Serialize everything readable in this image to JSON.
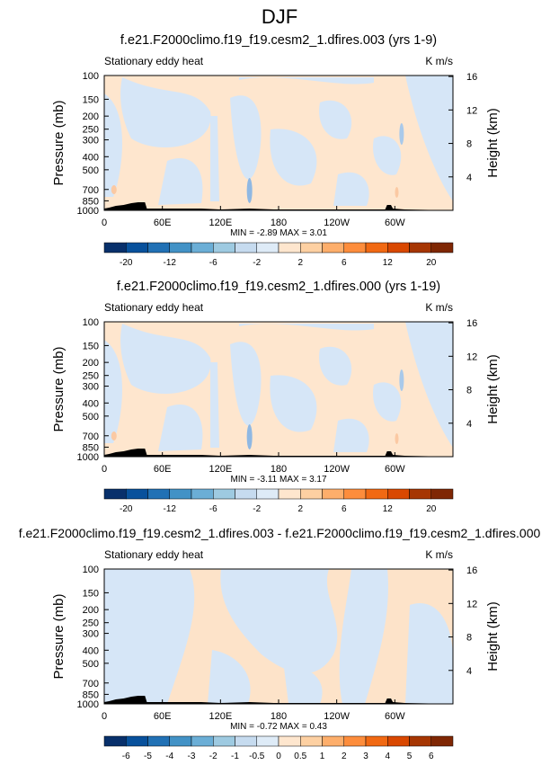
{
  "figure": {
    "title": "DJF"
  },
  "chart_data": [
    {
      "type": "heatmap",
      "title": "f.e21.F2000climo.f19_f19.cesm2_1.dfires.003 (yrs 1-9)",
      "subtitle_left": "Stationary eddy heat",
      "subtitle_right": "K m/s",
      "ylabel": "Pressure (mb)",
      "ylabel_right": "Height (km)",
      "x_ticks": [
        "0",
        "60E",
        "120E",
        "180",
        "120W",
        "60W"
      ],
      "x_tick_lons": [
        0,
        60,
        120,
        180,
        240,
        300
      ],
      "xlim": [
        0,
        360
      ],
      "y_ticks": [
        "100",
        "150",
        "200",
        "250",
        "300",
        "400",
        "500",
        "700",
        "850",
        "1000"
      ],
      "y_tick_values": [
        100,
        150,
        200,
        250,
        300,
        400,
        500,
        700,
        850,
        1000
      ],
      "ylim": [
        1000,
        100
      ],
      "y_scale": "log",
      "height_ticks": [
        "16",
        "12",
        "8",
        "4"
      ],
      "height_tick_values": [
        16,
        12,
        8,
        4
      ],
      "stats": "MIN = -2.89  MAX =  3.01",
      "colorbar": {
        "labels": [
          "-20",
          "-12",
          "-6",
          "-2",
          "2",
          "6",
          "12",
          "20"
        ],
        "colors": [
          "#08306b",
          "#08519c",
          "#2171b5",
          "#4292c6",
          "#6baed6",
          "#9ecae1",
          "#c6dbef",
          "#deebf7",
          "#fee6ce",
          "#fdd0a2",
          "#fdae6b",
          "#fd8d3c",
          "#f16913",
          "#d94801",
          "#a63603",
          "#7f2704"
        ]
      },
      "fill_positive": "#fee6ce",
      "fill_negative": "#d6e6f7"
    },
    {
      "type": "heatmap",
      "title": "f.e21.F2000climo.f19_f19.cesm2_1.dfires.000 (yrs 1-19)",
      "subtitle_left": "Stationary eddy heat",
      "subtitle_right": "K m/s",
      "ylabel": "Pressure (mb)",
      "ylabel_right": "Height (km)",
      "x_ticks": [
        "0",
        "60E",
        "120E",
        "180",
        "120W",
        "60W"
      ],
      "x_tick_lons": [
        0,
        60,
        120,
        180,
        240,
        300
      ],
      "xlim": [
        0,
        360
      ],
      "y_ticks": [
        "100",
        "150",
        "200",
        "250",
        "300",
        "400",
        "500",
        "700",
        "850",
        "1000"
      ],
      "y_tick_values": [
        100,
        150,
        200,
        250,
        300,
        400,
        500,
        700,
        850,
        1000
      ],
      "ylim": [
        1000,
        100
      ],
      "y_scale": "log",
      "height_ticks": [
        "16",
        "12",
        "8",
        "4"
      ],
      "height_tick_values": [
        16,
        12,
        8,
        4
      ],
      "stats": "MIN = -3.11  MAX =  3.17",
      "colorbar": {
        "labels": [
          "-20",
          "-12",
          "-6",
          "-2",
          "2",
          "6",
          "12",
          "20"
        ],
        "colors": [
          "#08306b",
          "#08519c",
          "#2171b5",
          "#4292c6",
          "#6baed6",
          "#9ecae1",
          "#c6dbef",
          "#deebf7",
          "#fee6ce",
          "#fdd0a2",
          "#fdae6b",
          "#fd8d3c",
          "#f16913",
          "#d94801",
          "#a63603",
          "#7f2704"
        ]
      },
      "fill_positive": "#fee6ce",
      "fill_negative": "#d6e6f7"
    },
    {
      "type": "heatmap",
      "title": "f.e21.F2000climo.f19_f19.cesm2_1.dfires.003 - f.e21.F2000climo.f19_f19.cesm2_1.dfires.000",
      "subtitle_left": "Stationary eddy heat",
      "subtitle_right": "K m/s",
      "ylabel": "Pressure (mb)",
      "ylabel_right": "Height (km)",
      "x_ticks": [
        "0",
        "60E",
        "120E",
        "180",
        "120W",
        "60W"
      ],
      "x_tick_lons": [
        0,
        60,
        120,
        180,
        240,
        300
      ],
      "xlim": [
        0,
        360
      ],
      "y_ticks": [
        "100",
        "150",
        "200",
        "250",
        "300",
        "400",
        "500",
        "700",
        "850",
        "1000"
      ],
      "y_tick_values": [
        100,
        150,
        200,
        250,
        300,
        400,
        500,
        700,
        850,
        1000
      ],
      "ylim": [
        1000,
        100
      ],
      "y_scale": "log",
      "height_ticks": [
        "16",
        "12",
        "8",
        "4"
      ],
      "height_tick_values": [
        16,
        12,
        8,
        4
      ],
      "stats": "MIN = -0.72  MAX =  0.43",
      "colorbar": {
        "labels": [
          "-6",
          "-5",
          "-4",
          "-3",
          "-2",
          "-1",
          "-0.5",
          "0",
          "0.5",
          "1",
          "2",
          "3",
          "4",
          "5",
          "6"
        ],
        "colors": [
          "#08306b",
          "#08519c",
          "#2171b5",
          "#4292c6",
          "#6baed6",
          "#9ecae1",
          "#c6dbef",
          "#deebf7",
          "#fee6ce",
          "#fdd0a2",
          "#fdae6b",
          "#fd8d3c",
          "#f16913",
          "#d94801",
          "#a63603",
          "#7f2704"
        ]
      },
      "fill_positive": "#fde3c9",
      "fill_negative": "#d6e6f7"
    }
  ]
}
